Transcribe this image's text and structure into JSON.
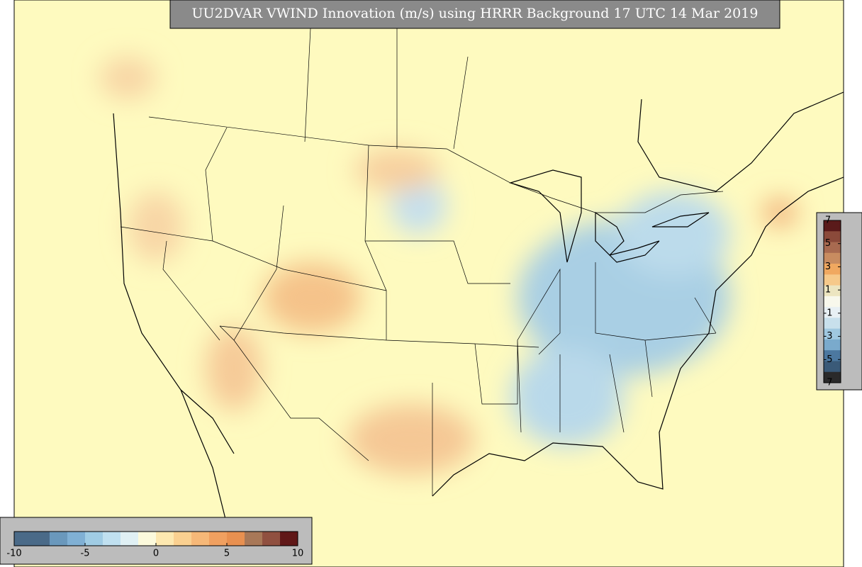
{
  "title": "UU2DVAR VWIND Innovation (m/s) using HRRR Background 17 UTC 14 Mar 2019",
  "colorbar_right": {
    "ticks": [
      7,
      5,
      3,
      1,
      -1,
      -3,
      -5,
      -7
    ],
    "colors": [
      "#5a1a1a",
      "#8b4a3a",
      "#a86a50",
      "#c88c60",
      "#f0a860",
      "#f6c98a",
      "#ece5c0",
      "#f8f8ec",
      "#e8f0f4",
      "#c8e0ec",
      "#a0c8e0",
      "#7aaacc",
      "#4c78a0",
      "#3a5a78",
      "#2a2a2a"
    ]
  },
  "colorbar_bottom": {
    "ticks": [
      -10,
      -5,
      0,
      5,
      10
    ],
    "colors": [
      "#4a6a88",
      "#4a6a88",
      "#6a98bc",
      "#80b0d4",
      "#a0cce4",
      "#c0e0f0",
      "#e0f0f4",
      "#fcfadc",
      "#fde8b0",
      "#fad090",
      "#f6b878",
      "#f0a060",
      "#e89050",
      "#a87858",
      "#905040",
      "#601818"
    ]
  }
}
